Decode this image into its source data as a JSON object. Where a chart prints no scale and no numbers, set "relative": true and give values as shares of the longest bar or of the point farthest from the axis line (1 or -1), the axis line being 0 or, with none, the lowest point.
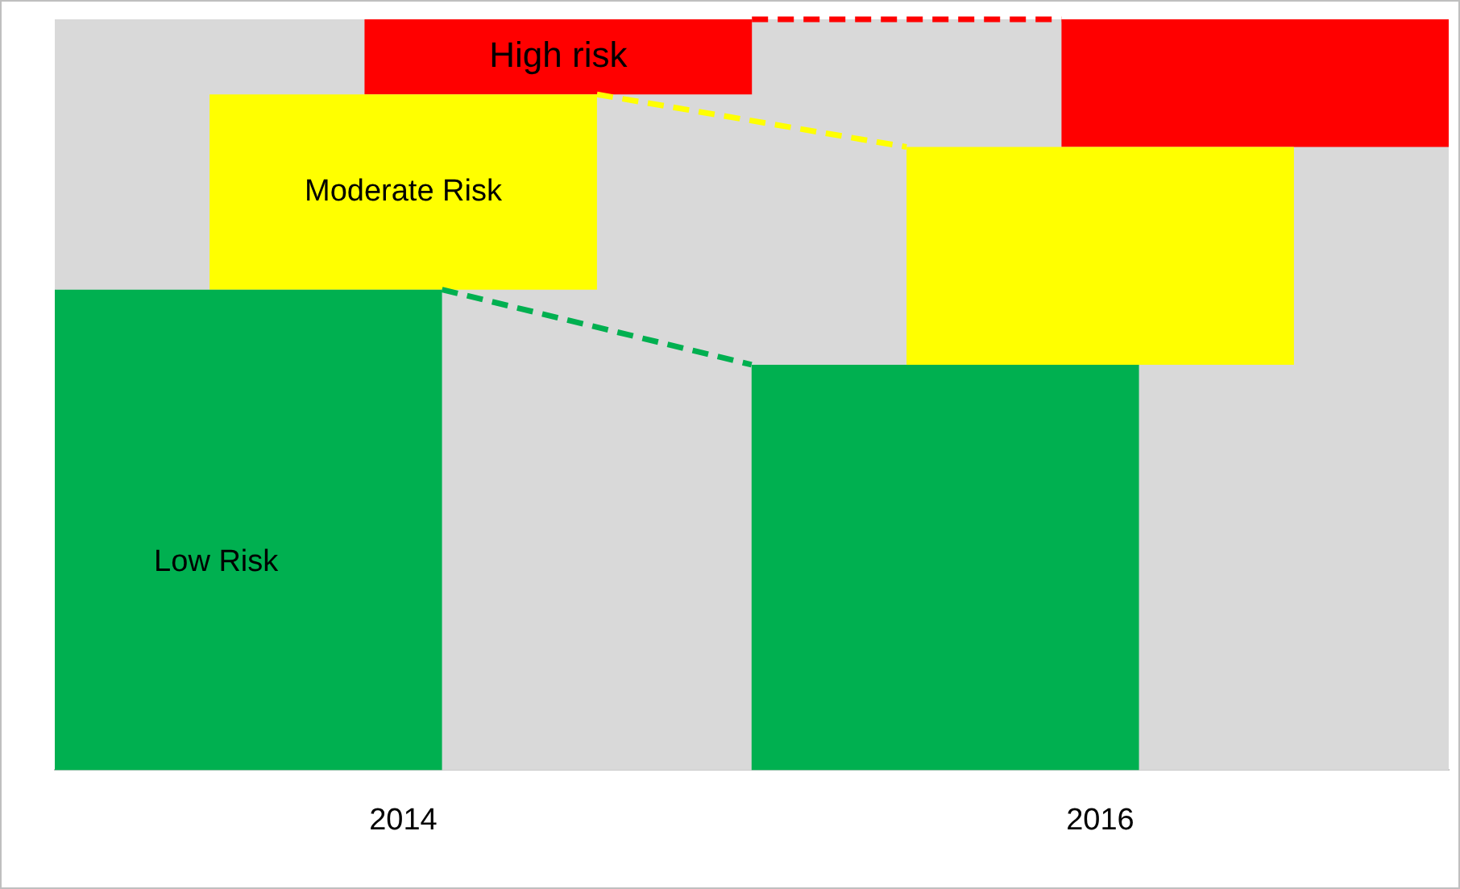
{
  "chart_data": {
    "type": "bar",
    "relative": true,
    "stacked": true,
    "categories": [
      "2014",
      "2016"
    ],
    "series": [
      {
        "name": "Low Risk",
        "color": "#00b050",
        "values": [
          0.64,
          0.54
        ]
      },
      {
        "name": "Moderate Risk",
        "color": "#ffff00",
        "values": [
          0.26,
          0.29
        ]
      },
      {
        "name": "High risk",
        "color": "#ff0000",
        "values": [
          0.1,
          0.17
        ]
      }
    ]
  }
}
